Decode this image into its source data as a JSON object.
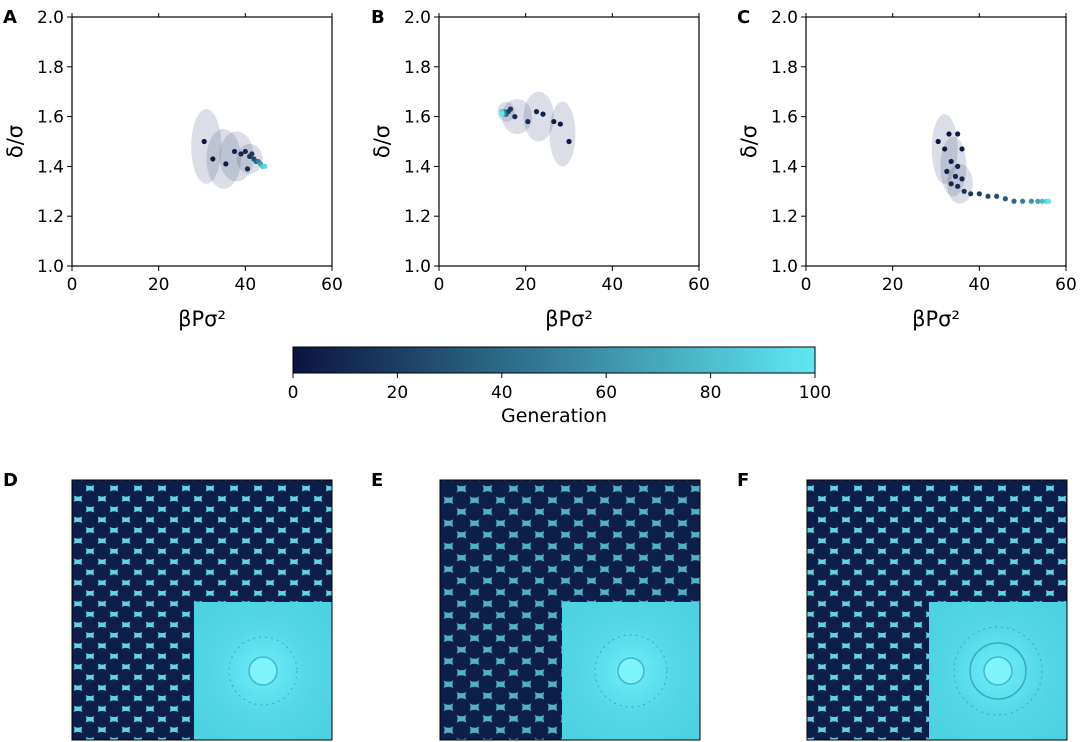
{
  "panel_letters": [
    "A",
    "B",
    "C",
    "D",
    "E",
    "F"
  ],
  "colorbar": {
    "label": "Generation",
    "ticks": [
      "0",
      "20",
      "40",
      "60",
      "80",
      "100"
    ],
    "range": [
      0,
      100
    ],
    "color_start": "#0b1440",
    "color_end": "#5fe8f2"
  },
  "chart_data": [
    {
      "type": "scatter",
      "panel": "A",
      "xlabel": "βPσ²",
      "ylabel": "δ/σ",
      "xlim": [
        0,
        60
      ],
      "ylim": [
        1.0,
        2.0
      ],
      "xticks": [
        "0",
        "20",
        "40",
        "60"
      ],
      "yticks": [
        "1.0",
        "1.2",
        "1.4",
        "1.6",
        "1.8",
        "2.0"
      ],
      "grid": false,
      "points": [
        {
          "x": 30.5,
          "y": 1.5,
          "g": 0
        },
        {
          "x": 32.5,
          "y": 1.43,
          "g": 2
        },
        {
          "x": 35.5,
          "y": 1.41,
          "g": 4
        },
        {
          "x": 37.5,
          "y": 1.46,
          "g": 6
        },
        {
          "x": 39.0,
          "y": 1.45,
          "g": 8
        },
        {
          "x": 40.0,
          "y": 1.46,
          "g": 10
        },
        {
          "x": 40.5,
          "y": 1.39,
          "g": 12
        },
        {
          "x": 41.0,
          "y": 1.44,
          "g": 14
        },
        {
          "x": 41.5,
          "y": 1.45,
          "g": 18
        },
        {
          "x": 42.0,
          "y": 1.43,
          "g": 25
        },
        {
          "x": 42.5,
          "y": 1.42,
          "g": 35
        },
        {
          "x": 43.0,
          "y": 1.42,
          "g": 50
        },
        {
          "x": 43.5,
          "y": 1.41,
          "g": 65
        },
        {
          "x": 44.0,
          "y": 1.4,
          "g": 80
        },
        {
          "x": 44.5,
          "y": 1.4,
          "g": 95
        }
      ],
      "ellipses": [
        {
          "x": 31.0,
          "y": 1.48,
          "rx": 3.5,
          "ry": 0.15
        },
        {
          "x": 35.0,
          "y": 1.43,
          "rx": 4.0,
          "ry": 0.12
        },
        {
          "x": 38.0,
          "y": 1.44,
          "rx": 4.0,
          "ry": 0.1
        },
        {
          "x": 41.0,
          "y": 1.43,
          "rx": 3.0,
          "ry": 0.06
        }
      ]
    },
    {
      "type": "scatter",
      "panel": "B",
      "xlabel": "βPσ²",
      "ylabel": "δ/σ",
      "xlim": [
        0,
        60
      ],
      "ylim": [
        1.0,
        2.0
      ],
      "xticks": [
        "0",
        "20",
        "40",
        "60"
      ],
      "yticks": [
        "1.0",
        "1.2",
        "1.4",
        "1.6",
        "1.8",
        "2.0"
      ],
      "grid": false,
      "points": [
        {
          "x": 30.0,
          "y": 1.5,
          "g": 0
        },
        {
          "x": 28.0,
          "y": 1.57,
          "g": 2
        },
        {
          "x": 26.5,
          "y": 1.58,
          "g": 4
        },
        {
          "x": 24.0,
          "y": 1.61,
          "g": 6
        },
        {
          "x": 22.5,
          "y": 1.62,
          "g": 8
        },
        {
          "x": 20.5,
          "y": 1.58,
          "g": 10
        },
        {
          "x": 17.5,
          "y": 1.6,
          "g": 12
        },
        {
          "x": 16.5,
          "y": 1.63,
          "g": 15
        },
        {
          "x": 16.0,
          "y": 1.62,
          "g": 20
        },
        {
          "x": 15.5,
          "y": 1.61,
          "g": 30
        },
        {
          "x": 15.0,
          "y": 1.62,
          "g": 45
        },
        {
          "x": 15.0,
          "y": 1.61,
          "g": 60
        },
        {
          "x": 14.5,
          "y": 1.61,
          "g": 75
        },
        {
          "x": 14.5,
          "y": 1.62,
          "g": 90
        },
        {
          "x": 14.5,
          "y": 1.61,
          "g": 100
        }
      ],
      "ellipses": [
        {
          "x": 28.5,
          "y": 1.53,
          "rx": 3.0,
          "ry": 0.13
        },
        {
          "x": 23.0,
          "y": 1.6,
          "rx": 3.5,
          "ry": 0.1
        },
        {
          "x": 18.0,
          "y": 1.6,
          "rx": 3.5,
          "ry": 0.07
        },
        {
          "x": 15.5,
          "y": 1.62,
          "rx": 2.0,
          "ry": 0.04
        }
      ]
    },
    {
      "type": "scatter",
      "panel": "C",
      "xlabel": "βPσ²",
      "ylabel": "δ/σ",
      "xlim": [
        0,
        60
      ],
      "ylim": [
        1.0,
        2.0
      ],
      "xticks": [
        "0",
        "20",
        "40",
        "60"
      ],
      "yticks": [
        "1.0",
        "1.2",
        "1.4",
        "1.6",
        "1.8",
        "2.0"
      ],
      "grid": false,
      "points": [
        {
          "x": 30.5,
          "y": 1.5,
          "g": 0
        },
        {
          "x": 33.0,
          "y": 1.53,
          "g": 1
        },
        {
          "x": 35.0,
          "y": 1.53,
          "g": 2
        },
        {
          "x": 32.0,
          "y": 1.47,
          "g": 3
        },
        {
          "x": 36.0,
          "y": 1.47,
          "g": 4
        },
        {
          "x": 33.5,
          "y": 1.42,
          "g": 5
        },
        {
          "x": 35.0,
          "y": 1.4,
          "g": 6
        },
        {
          "x": 32.5,
          "y": 1.38,
          "g": 7
        },
        {
          "x": 34.5,
          "y": 1.36,
          "g": 8
        },
        {
          "x": 36.0,
          "y": 1.35,
          "g": 9
        },
        {
          "x": 33.5,
          "y": 1.33,
          "g": 10
        },
        {
          "x": 35.0,
          "y": 1.32,
          "g": 12
        },
        {
          "x": 36.5,
          "y": 1.3,
          "g": 14
        },
        {
          "x": 38.0,
          "y": 1.29,
          "g": 17
        },
        {
          "x": 40.0,
          "y": 1.29,
          "g": 20
        },
        {
          "x": 42.0,
          "y": 1.28,
          "g": 24
        },
        {
          "x": 44.0,
          "y": 1.28,
          "g": 28
        },
        {
          "x": 46.0,
          "y": 1.27,
          "g": 33
        },
        {
          "x": 48.0,
          "y": 1.26,
          "g": 40
        },
        {
          "x": 50.0,
          "y": 1.26,
          "g": 48
        },
        {
          "x": 52.0,
          "y": 1.26,
          "g": 58
        },
        {
          "x": 53.5,
          "y": 1.26,
          "g": 68
        },
        {
          "x": 54.5,
          "y": 1.26,
          "g": 78
        },
        {
          "x": 55.5,
          "y": 1.26,
          "g": 88
        },
        {
          "x": 56.0,
          "y": 1.26,
          "g": 100
        }
      ],
      "ellipses": [
        {
          "x": 32.0,
          "y": 1.47,
          "rx": 3.0,
          "ry": 0.14
        },
        {
          "x": 34.0,
          "y": 1.4,
          "rx": 3.0,
          "ry": 0.12
        },
        {
          "x": 35.5,
          "y": 1.33,
          "rx": 3.0,
          "ry": 0.08
        }
      ]
    }
  ]
}
